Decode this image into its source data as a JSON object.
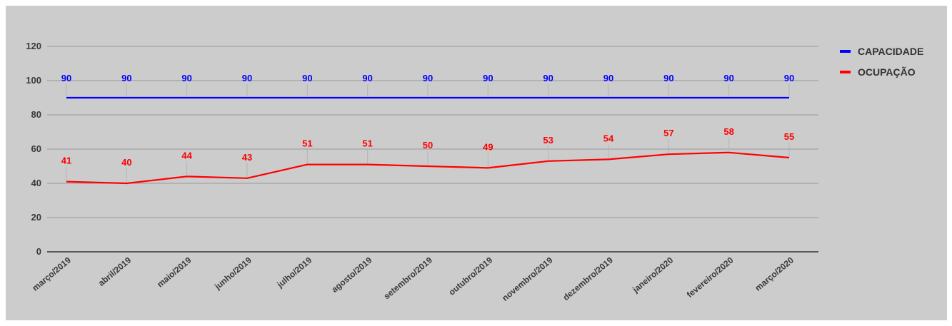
{
  "chart_data": {
    "type": "line",
    "title": "",
    "xlabel": "",
    "ylabel": "",
    "categories": [
      "março/2019",
      "abril/2019",
      "maio/2019",
      "junho/2019",
      "julho/2019",
      "agosto/2019",
      "setembro/2019",
      "outubro/2019",
      "novembro/2019",
      "dezembro/2019",
      "janeiro/2020",
      "fevereiro/2020",
      "março/2020"
    ],
    "series": [
      {
        "name": "CAPACIDADE",
        "color": "#0000ff",
        "values": [
          90,
          90,
          90,
          90,
          90,
          90,
          90,
          90,
          90,
          90,
          90,
          90,
          90
        ]
      },
      {
        "name": "OCUPAÇÃO",
        "color": "#ff0000",
        "values": [
          41,
          40,
          44,
          43,
          51,
          51,
          50,
          49,
          53,
          54,
          57,
          58,
          55
        ]
      }
    ],
    "ylim": [
      0,
      120
    ],
    "yticks": [
      0,
      20,
      40,
      60,
      80,
      100,
      120
    ],
    "grid": true,
    "legend_position": "right"
  }
}
